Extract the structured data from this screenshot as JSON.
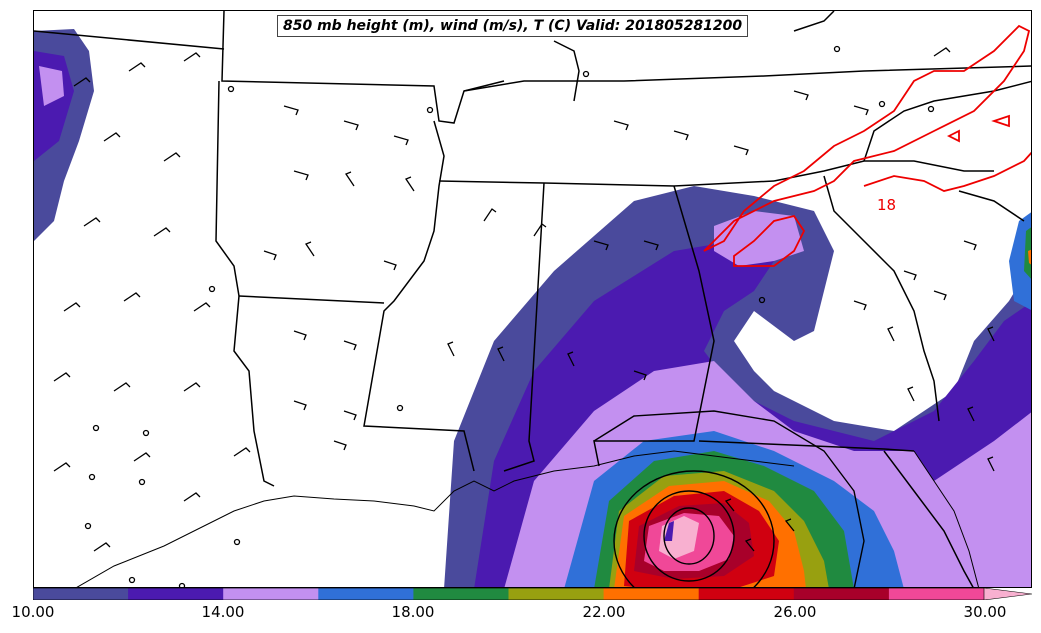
{
  "title": "850 mb height (m), wind (m/s), T (C) Valid: 201805281200",
  "colorbar": {
    "colors": [
      "#4a4a9c",
      "#4b1ab0",
      "#c390f0",
      "#3070d8",
      "#208a40",
      "#98a010",
      "#ff7000",
      "#d00010",
      "#a8002a",
      "#f04898",
      "#f8b0d0"
    ],
    "tick_labels": [
      "10.00",
      "14.00",
      "18.00",
      "22.00",
      "26.00",
      "30.00"
    ]
  },
  "contour_labels": [
    "18"
  ],
  "colors": {
    "state_border": "#000000",
    "temperature_contour": "#ee0000",
    "height_contour": "#000000"
  }
}
